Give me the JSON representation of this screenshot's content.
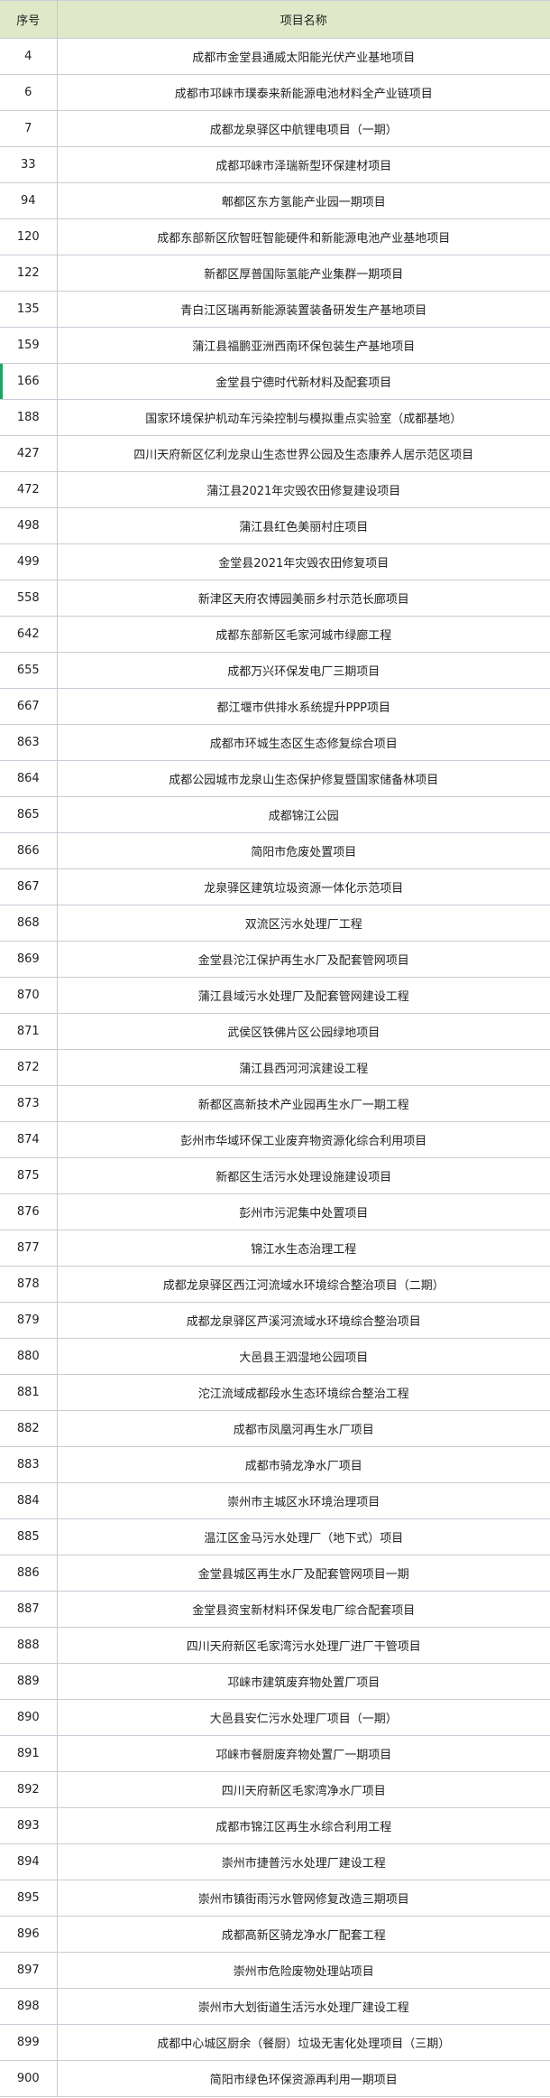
{
  "header": {
    "col_index": "序号",
    "col_name": "项目名称"
  },
  "accent_color": "#21a366",
  "header_bg": "#dfe8c9",
  "active_row": "166",
  "rows": [
    {
      "no": "4",
      "name": "成都市金堂县通威太阳能光伏产业基地项目"
    },
    {
      "no": "6",
      "name": "成都市邛崃市璞泰来新能源电池材料全产业链项目"
    },
    {
      "no": "7",
      "name": "成都龙泉驿区中航锂电项目（一期）"
    },
    {
      "no": "33",
      "name": "成都邛崃市泽瑞新型环保建材项目"
    },
    {
      "no": "94",
      "name": "郫都区东方氢能产业园一期项目"
    },
    {
      "no": "120",
      "name": "成都东部新区欣智旺智能硬件和新能源电池产业基地项目"
    },
    {
      "no": "122",
      "name": "新都区厚普国际氢能产业集群一期项目"
    },
    {
      "no": "135",
      "name": "青白江区瑞再新能源装置装备研发生产基地项目"
    },
    {
      "no": "159",
      "name": "蒲江县福鹏亚洲西南环保包装生产基地项目"
    },
    {
      "no": "166",
      "name": "金堂县宁德时代新材料及配套项目"
    },
    {
      "no": "188",
      "name": "国家环境保护机动车污染控制与模拟重点实验室（成都基地）"
    },
    {
      "no": "427",
      "name": "四川天府新区亿利龙泉山生态世界公园及生态康养人居示范区项目"
    },
    {
      "no": "472",
      "name": "蒲江县2021年灾毁农田修复建设项目"
    },
    {
      "no": "498",
      "name": "蒲江县红色美丽村庄项目"
    },
    {
      "no": "499",
      "name": "金堂县2021年灾毁农田修复项目"
    },
    {
      "no": "558",
      "name": "新津区天府农博园美丽乡村示范长廊项目"
    },
    {
      "no": "642",
      "name": "成都东部新区毛家河城市绿廊工程"
    },
    {
      "no": "655",
      "name": "成都万兴环保发电厂三期项目"
    },
    {
      "no": "667",
      "name": "都江堰市供排水系统提升PPP项目"
    },
    {
      "no": "863",
      "name": "成都市环城生态区生态修复综合项目"
    },
    {
      "no": "864",
      "name": "成都公园城市龙泉山生态保护修复暨国家储备林项目"
    },
    {
      "no": "865",
      "name": "成都锦江公园"
    },
    {
      "no": "866",
      "name": "简阳市危废处置项目"
    },
    {
      "no": "867",
      "name": "龙泉驿区建筑垃圾资源一体化示范项目"
    },
    {
      "no": "868",
      "name": "双流区污水处理厂工程"
    },
    {
      "no": "869",
      "name": "金堂县沱江保护再生水厂及配套管网项目"
    },
    {
      "no": "870",
      "name": "蒲江县域污水处理厂及配套管网建设工程"
    },
    {
      "no": "871",
      "name": "武侯区铁佛片区公园绿地项目"
    },
    {
      "no": "872",
      "name": "蒲江县西河河滨建设工程"
    },
    {
      "no": "873",
      "name": "新都区高新技术产业园再生水厂一期工程"
    },
    {
      "no": "874",
      "name": "彭州市华域环保工业废弃物资源化综合利用项目"
    },
    {
      "no": "875",
      "name": "新都区生活污水处理设施建设项目"
    },
    {
      "no": "876",
      "name": "彭州市污泥集中处置项目"
    },
    {
      "no": "877",
      "name": "锦江水生态治理工程"
    },
    {
      "no": "878",
      "name": "成都龙泉驿区西江河流域水环境综合整治项目（二期）"
    },
    {
      "no": "879",
      "name": "成都龙泉驿区芦溪河流域水环境综合整治项目"
    },
    {
      "no": "880",
      "name": "大邑县王泗湿地公园项目"
    },
    {
      "no": "881",
      "name": "沱江流域成都段水生态环境综合整治工程"
    },
    {
      "no": "882",
      "name": "成都市凤凰河再生水厂项目"
    },
    {
      "no": "883",
      "name": "成都市骑龙净水厂项目"
    },
    {
      "no": "884",
      "name": "崇州市主城区水环境治理项目"
    },
    {
      "no": "885",
      "name": "温江区金马污水处理厂（地下式）项目"
    },
    {
      "no": "886",
      "name": "金堂县城区再生水厂及配套管网项目一期"
    },
    {
      "no": "887",
      "name": "金堂县资宝新材料环保发电厂综合配套项目"
    },
    {
      "no": "888",
      "name": "四川天府新区毛家湾污水处理厂进厂干管项目"
    },
    {
      "no": "889",
      "name": "邛崃市建筑废弃物处置厂项目"
    },
    {
      "no": "890",
      "name": "大邑县安仁污水处理厂项目（一期）"
    },
    {
      "no": "891",
      "name": "邛崃市餐厨废弃物处置厂一期项目"
    },
    {
      "no": "892",
      "name": "四川天府新区毛家湾净水厂项目"
    },
    {
      "no": "893",
      "name": "成都市锦江区再生水综合利用工程"
    },
    {
      "no": "894",
      "name": "崇州市捷普污水处理厂建设工程"
    },
    {
      "no": "895",
      "name": "崇州市镇街雨污水管网修复改造三期项目"
    },
    {
      "no": "896",
      "name": "成都高新区骑龙净水厂配套工程"
    },
    {
      "no": "897",
      "name": "崇州市危险废物处理站项目"
    },
    {
      "no": "898",
      "name": "崇州市大划街道生活污水处理厂建设工程"
    },
    {
      "no": "899",
      "name": "成都中心城区厨余（餐厨）垃圾无害化处理项目（三期）"
    },
    {
      "no": "900",
      "name": "简阳市绿色环保资源再利用一期项目"
    }
  ]
}
